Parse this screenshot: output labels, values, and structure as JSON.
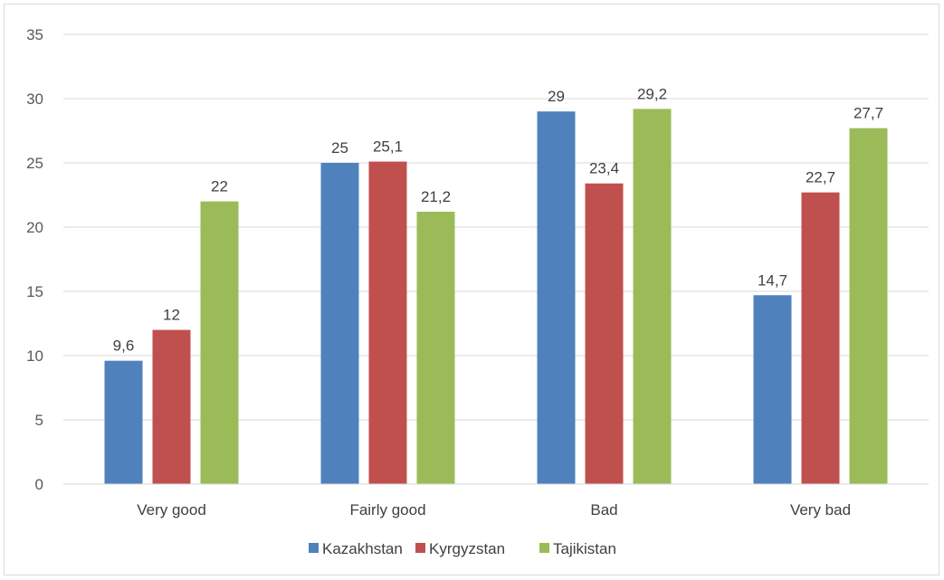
{
  "chart_data": {
    "type": "bar",
    "categories": [
      "Very good",
      "Fairly good",
      "Bad",
      "Very bad"
    ],
    "series": [
      {
        "name": "Kazakhstan",
        "color": "#4f81bd",
        "values": [
          9.6,
          25,
          29,
          14.7
        ],
        "labels": [
          "9,6",
          "25",
          "29",
          "14,7"
        ]
      },
      {
        "name": "Kyrgyzstan",
        "color": "#c0504d",
        "values": [
          12,
          25.1,
          23.4,
          22.7
        ],
        "labels": [
          "12",
          "25,1",
          "23,4",
          "22,7"
        ]
      },
      {
        "name": "Tajikistan",
        "color": "#9bbb59",
        "values": [
          22,
          21.2,
          29.2,
          27.7
        ],
        "labels": [
          "22",
          "21,2",
          "29,2",
          "27,7"
        ]
      }
    ],
    "ylim": [
      0,
      35
    ],
    "yticks": [
      0,
      5,
      10,
      15,
      20,
      25,
      30,
      35
    ],
    "grid": true,
    "legend_position": "bottom"
  }
}
